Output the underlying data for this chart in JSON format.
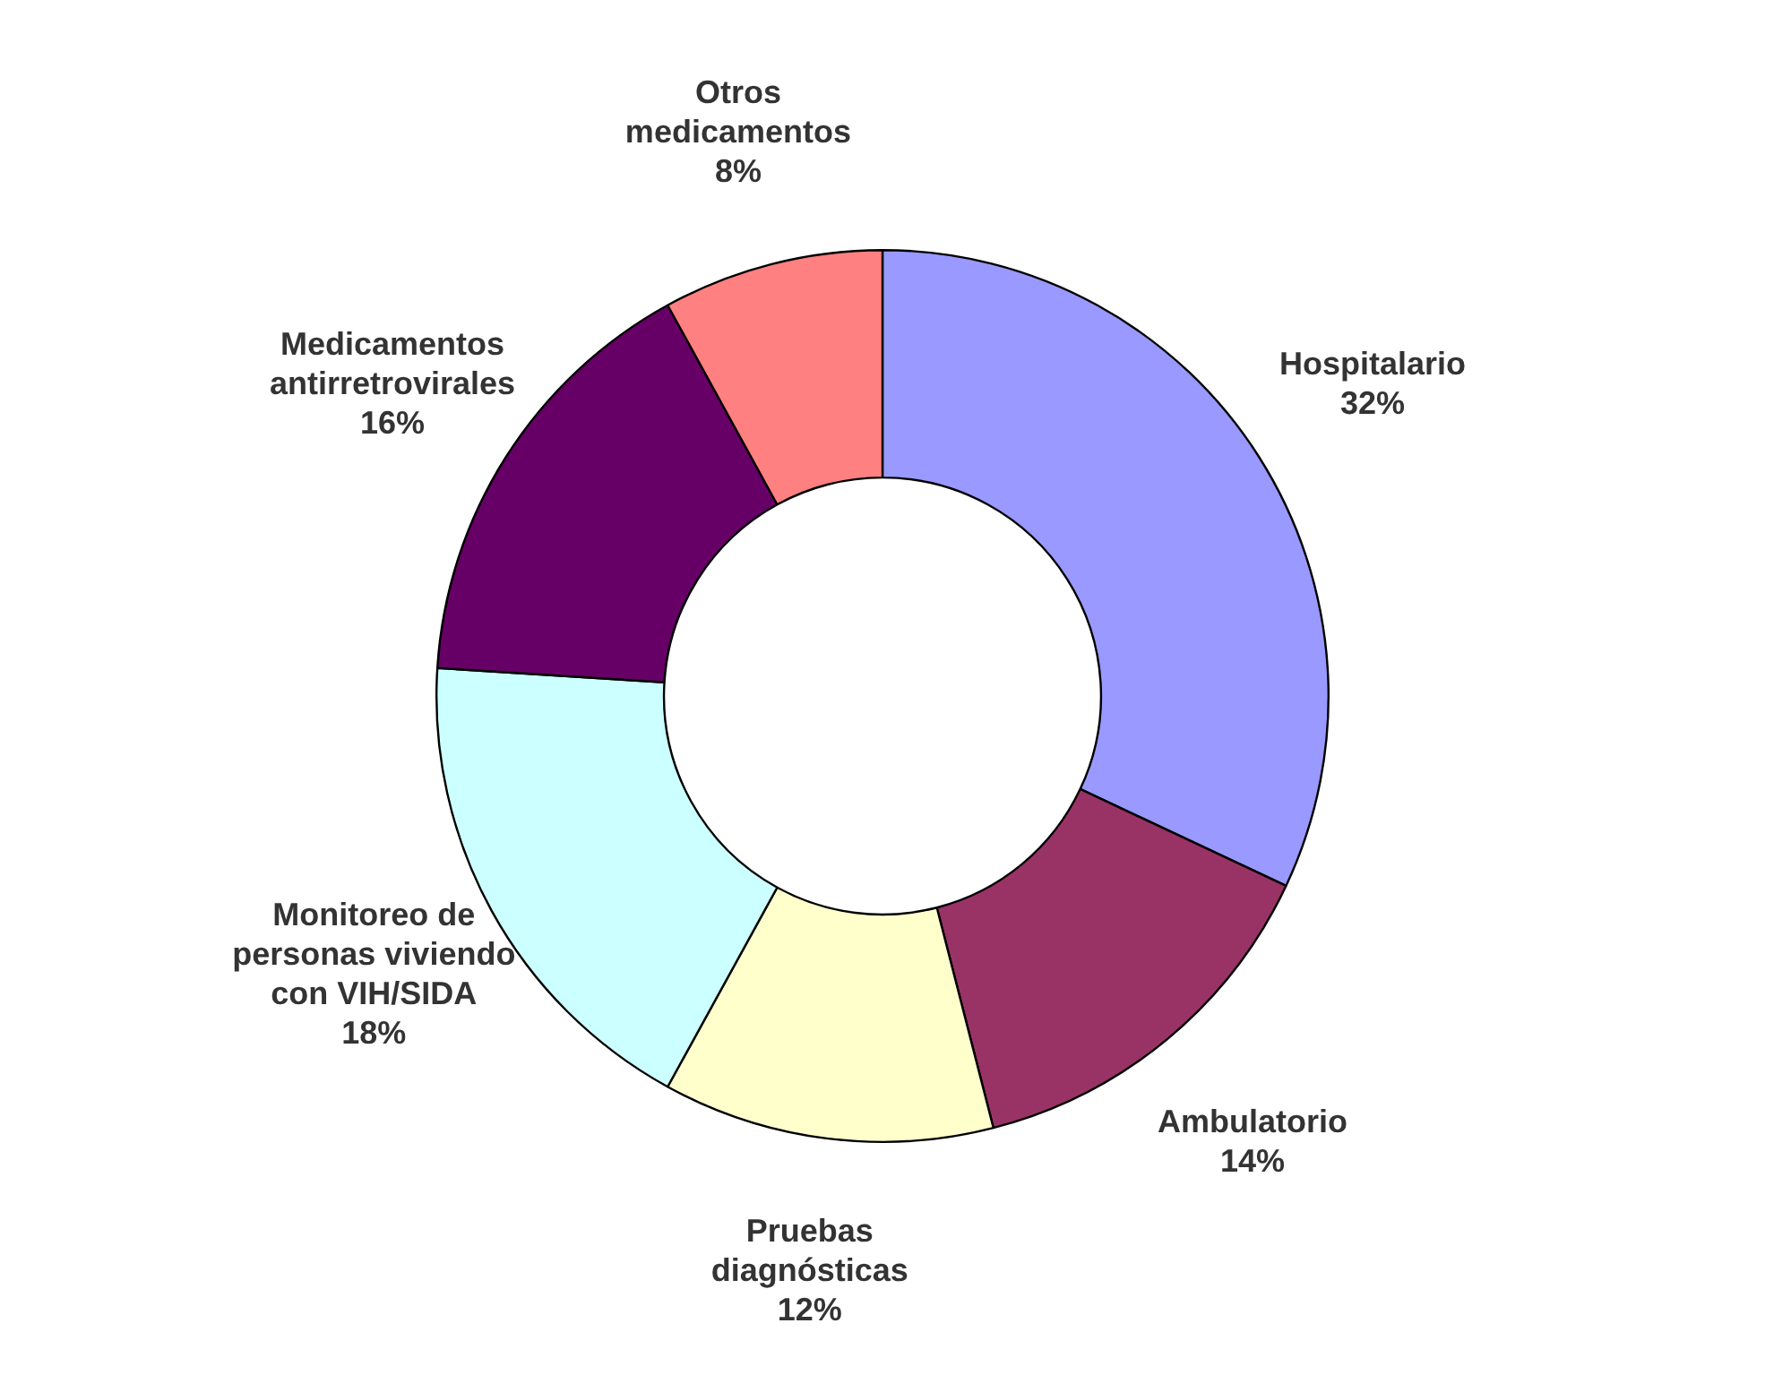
{
  "chart_data": {
    "type": "donut",
    "categories": [
      "Hospitalario",
      "Ambulatorio",
      "Pruebas diagnósticas",
      "Monitoreo de personas viviendo con VIH/SIDA",
      "Medicamentos antirretrovirales",
      "Otros medicamentos"
    ],
    "values": [
      32,
      14,
      12,
      18,
      16,
      8
    ],
    "value_labels": [
      "32%",
      "14%",
      "12%",
      "18%",
      "16%",
      "8%"
    ],
    "colors": [
      "#9999ff",
      "#993366",
      "#ffffcc",
      "#ccffff",
      "#660066",
      "#ff8080"
    ],
    "legend": false
  }
}
